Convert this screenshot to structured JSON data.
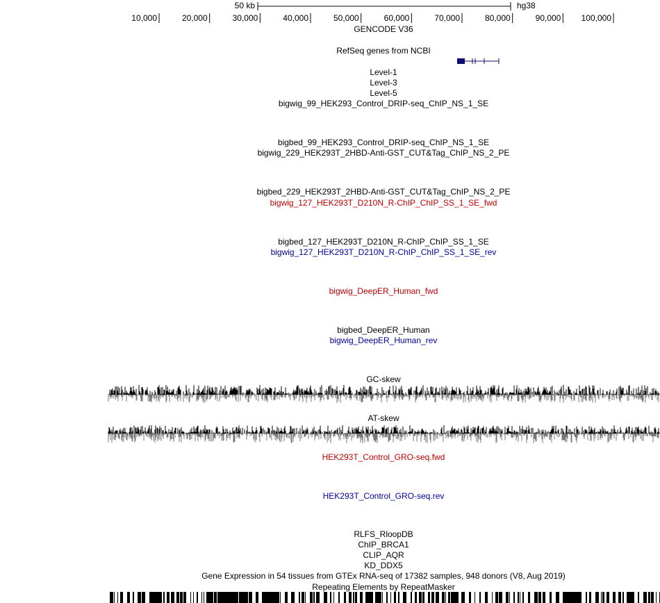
{
  "ruler": {
    "scale_label": "50 kb",
    "assembly": "hg38",
    "ticks": [
      "10,000",
      "20,000",
      "30,000",
      "40,000",
      "50,000",
      "60,000",
      "70,000",
      "80,000",
      "90,000",
      "100,000"
    ]
  },
  "tracks": [
    {
      "label": "GENCODE V36",
      "color": "#000000"
    },
    {
      "label": "RefSeq genes from NCBI",
      "color": "#000000"
    },
    {
      "label": "Level-1",
      "color": "#000000"
    },
    {
      "label": "Level-3",
      "color": "#000000"
    },
    {
      "label": "Level-5",
      "color": "#000000"
    },
    {
      "label": "bigwig_99_HEK293_Control_DRIP-seq_ChIP_NS_1_SE",
      "color": "#000000"
    },
    {
      "label": "bigbed_99_HEK293_Control_DRIP-seq_ChIP_NS_1_SE",
      "color": "#000000"
    },
    {
      "label": "bigwig_229_HEK293T_2HBD-Anti-GST_CUT&Tag_ChIP_NS_2_PE",
      "color": "#000000"
    },
    {
      "label": "bigbed_229_HEK293T_2HBD-Anti-GST_CUT&Tag_ChIP_NS_2_PE",
      "color": "#000000"
    },
    {
      "label": "bigwig_127_HEK293T_D210N_R-ChIP_ChIP_SS_1_SE_fwd",
      "color": "#c00000"
    },
    {
      "label": "bigbed_127_HEK293T_D210N_R-ChIP_ChIP_SS_1_SE",
      "color": "#000000"
    },
    {
      "label": "bigwig_127_HEK293T_D210N_R-ChIP_ChIP_SS_1_SE_rev",
      "color": "#0000a0"
    },
    {
      "label": "bigwig_DeepER_Human_fwd",
      "color": "#c00000"
    },
    {
      "label": "bigbed_DeepER_Human",
      "color": "#000000"
    },
    {
      "label": "bigwig_DeepER_Human_rev",
      "color": "#0000a0"
    },
    {
      "label": "GC-skew",
      "color": "#000000"
    },
    {
      "label": "AT-skew",
      "color": "#000000"
    },
    {
      "label": "HEK293T_Control_GRO-seq.fwd",
      "color": "#c00000"
    },
    {
      "label": "HEK293T_Control_GRO-seq.rev",
      "color": "#0000a0"
    },
    {
      "label": "RLFS_RloopDB",
      "color": "#000000"
    },
    {
      "label": "ChIP_BRCA1",
      "color": "#000000"
    },
    {
      "label": "CLIP_AQR",
      "color": "#000000"
    },
    {
      "label": "KD_DDX5",
      "color": "#000000"
    },
    {
      "label": "Gene Expression in 54 tissues from GTEx RNA-seq of 17382 samples, 948 donors (V8, Aug 2019)",
      "color": "#000000"
    },
    {
      "label": "Repeating Elements by RepeatMasker",
      "color": "#000000"
    }
  ]
}
